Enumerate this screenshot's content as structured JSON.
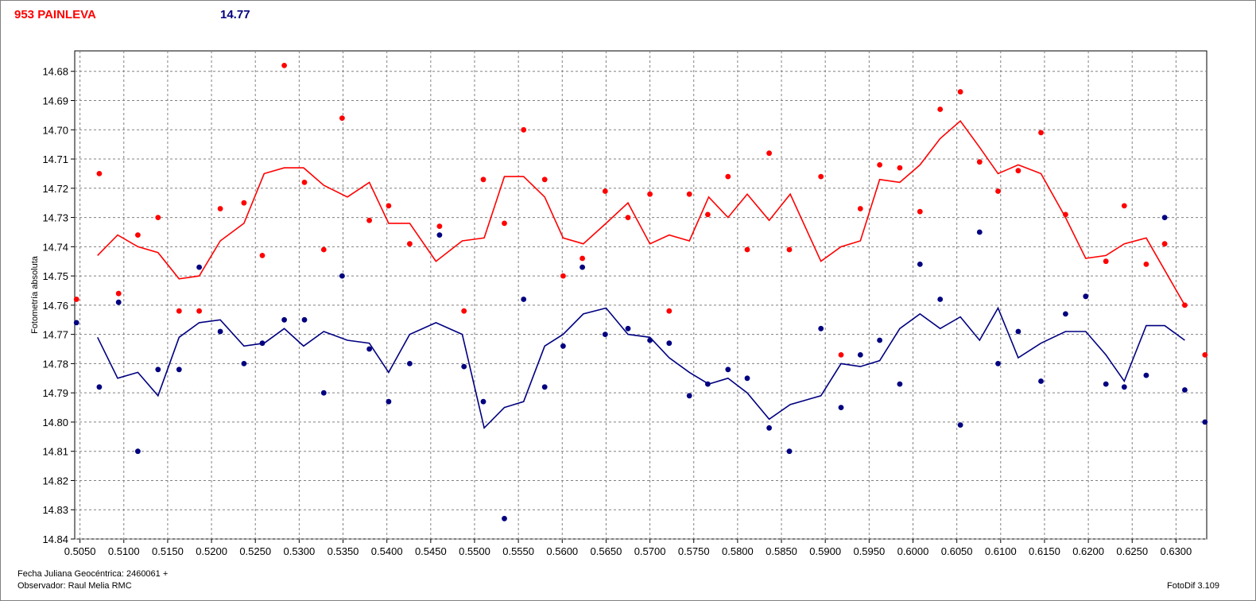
{
  "header": {
    "title": "953 PAINLEVA",
    "magnitude": "14.77"
  },
  "footer": {
    "date_label": "Fecha Juliana Geocéntrica: 2460061 +",
    "observer": "Observador: Raul Melia RMC",
    "software": "FotoDif 3.109"
  },
  "colors": {
    "series_red": "#ff0000",
    "series_blue": "#000080",
    "grid": "#808080"
  },
  "chart_data": {
    "type": "scatter",
    "ylabel": "Fotometría absoluta",
    "xlabel": "",
    "xlim": [
      0.5044,
      0.6335
    ],
    "ylim": [
      14.84,
      14.673
    ],
    "y_inverted": true,
    "grid": true,
    "x_ticks": [
      "0.5050",
      "0.5100",
      "0.5150",
      "0.5200",
      "0.5250",
      "0.5300",
      "0.5350",
      "0.5400",
      "0.5450",
      "0.5500",
      "0.5550",
      "0.5600",
      "0.5650",
      "0.5700",
      "0.5750",
      "0.5800",
      "0.5850",
      "0.5900",
      "0.5950",
      "0.6000",
      "0.6050",
      "0.6100",
      "0.6150",
      "0.6200",
      "0.6250",
      "0.6300"
    ],
    "y_ticks": [
      "14.68",
      "14.69",
      "14.70",
      "14.71",
      "14.72",
      "14.73",
      "14.74",
      "14.75",
      "14.76",
      "14.77",
      "14.78",
      "14.79",
      "14.80",
      "14.81",
      "14.82",
      "14.83",
      "14.84"
    ],
    "series": [
      {
        "color": "#ff0000",
        "points": [
          [
            0.5046,
            14.758
          ],
          [
            0.5072,
            14.715
          ],
          [
            0.5094,
            14.756
          ],
          [
            0.5116,
            14.736
          ],
          [
            0.5139,
            14.73
          ],
          [
            0.5163,
            14.762
          ],
          [
            0.5186,
            14.762
          ],
          [
            0.521,
            14.727
          ],
          [
            0.5237,
            14.725
          ],
          [
            0.5258,
            14.743
          ],
          [
            0.5283,
            14.678
          ],
          [
            0.5306,
            14.718
          ],
          [
            0.5328,
            14.741
          ],
          [
            0.5349,
            14.696
          ],
          [
            0.538,
            14.731
          ],
          [
            0.5402,
            14.726
          ],
          [
            0.5426,
            14.739
          ],
          [
            0.546,
            14.733
          ],
          [
            0.5488,
            14.762
          ],
          [
            0.551,
            14.717
          ],
          [
            0.5534,
            14.732
          ],
          [
            0.5556,
            14.7
          ],
          [
            0.558,
            14.717
          ],
          [
            0.5601,
            14.75
          ],
          [
            0.5623,
            14.744
          ],
          [
            0.5649,
            14.721
          ],
          [
            0.5675,
            14.73
          ],
          [
            0.57,
            14.722
          ],
          [
            0.5722,
            14.762
          ],
          [
            0.5745,
            14.722
          ],
          [
            0.5766,
            14.729
          ],
          [
            0.5789,
            14.716
          ],
          [
            0.5811,
            14.741
          ],
          [
            0.5836,
            14.708
          ],
          [
            0.5859,
            14.741
          ],
          [
            0.5895,
            14.716
          ],
          [
            0.5918,
            14.777
          ],
          [
            0.594,
            14.727
          ],
          [
            0.5962,
            14.712
          ],
          [
            0.5985,
            14.713
          ],
          [
            0.6008,
            14.728
          ],
          [
            0.6031,
            14.693
          ],
          [
            0.6054,
            14.687
          ],
          [
            0.6076,
            14.711
          ],
          [
            0.6097,
            14.721
          ],
          [
            0.612,
            14.714
          ],
          [
            0.6146,
            14.701
          ],
          [
            0.6174,
            14.729
          ],
          [
            0.6197,
            14.757
          ],
          [
            0.622,
            14.745
          ],
          [
            0.6241,
            14.726
          ],
          [
            0.6266,
            14.746
          ],
          [
            0.6287,
            14.739
          ],
          [
            0.631,
            14.76
          ],
          [
            0.6333,
            14.777
          ]
        ],
        "line": [
          [
            0.507,
            14.743
          ],
          [
            0.5093,
            14.736
          ],
          [
            0.5116,
            14.74
          ],
          [
            0.5139,
            14.742
          ],
          [
            0.5163,
            14.751
          ],
          [
            0.5186,
            14.75
          ],
          [
            0.521,
            14.738
          ],
          [
            0.5237,
            14.732
          ],
          [
            0.526,
            14.715
          ],
          [
            0.5283,
            14.713
          ],
          [
            0.5305,
            14.713
          ],
          [
            0.5328,
            14.719
          ],
          [
            0.5355,
            14.723
          ],
          [
            0.538,
            14.718
          ],
          [
            0.5402,
            14.732
          ],
          [
            0.5426,
            14.732
          ],
          [
            0.5456,
            14.745
          ],
          [
            0.5486,
            14.738
          ],
          [
            0.5511,
            14.737
          ],
          [
            0.5534,
            14.716
          ],
          [
            0.5556,
            14.716
          ],
          [
            0.558,
            14.723
          ],
          [
            0.5601,
            14.737
          ],
          [
            0.5624,
            14.739
          ],
          [
            0.565,
            14.732
          ],
          [
            0.5675,
            14.725
          ],
          [
            0.57,
            14.739
          ],
          [
            0.5722,
            14.736
          ],
          [
            0.5745,
            14.738
          ],
          [
            0.5767,
            14.723
          ],
          [
            0.5789,
            14.73
          ],
          [
            0.5811,
            14.722
          ],
          [
            0.5836,
            14.731
          ],
          [
            0.586,
            14.722
          ],
          [
            0.5895,
            14.745
          ],
          [
            0.5918,
            14.74
          ],
          [
            0.594,
            14.738
          ],
          [
            0.5962,
            14.717
          ],
          [
            0.5985,
            14.718
          ],
          [
            0.6008,
            14.712
          ],
          [
            0.6031,
            14.703
          ],
          [
            0.6054,
            14.697
          ],
          [
            0.6076,
            14.706
          ],
          [
            0.6097,
            14.715
          ],
          [
            0.612,
            14.712
          ],
          [
            0.6146,
            14.715
          ],
          [
            0.6174,
            14.73
          ],
          [
            0.6197,
            14.744
          ],
          [
            0.622,
            14.743
          ],
          [
            0.6241,
            14.739
          ],
          [
            0.6266,
            14.737
          ],
          [
            0.631,
            14.76
          ]
        ]
      },
      {
        "color": "#000080",
        "points": [
          [
            0.5046,
            14.766
          ],
          [
            0.5072,
            14.788
          ],
          [
            0.5094,
            14.759
          ],
          [
            0.5116,
            14.81
          ],
          [
            0.5139,
            14.782
          ],
          [
            0.5163,
            14.782
          ],
          [
            0.5186,
            14.747
          ],
          [
            0.521,
            14.769
          ],
          [
            0.5237,
            14.78
          ],
          [
            0.5258,
            14.773
          ],
          [
            0.5283,
            14.765
          ],
          [
            0.5306,
            14.765
          ],
          [
            0.5328,
            14.79
          ],
          [
            0.5349,
            14.75
          ],
          [
            0.538,
            14.775
          ],
          [
            0.5402,
            14.793
          ],
          [
            0.5426,
            14.78
          ],
          [
            0.546,
            14.736
          ],
          [
            0.5488,
            14.781
          ],
          [
            0.551,
            14.793
          ],
          [
            0.5534,
            14.833
          ],
          [
            0.5556,
            14.758
          ],
          [
            0.558,
            14.788
          ],
          [
            0.5601,
            14.774
          ],
          [
            0.5623,
            14.747
          ],
          [
            0.5649,
            14.77
          ],
          [
            0.5675,
            14.768
          ],
          [
            0.57,
            14.772
          ],
          [
            0.5722,
            14.773
          ],
          [
            0.5745,
            14.791
          ],
          [
            0.5766,
            14.787
          ],
          [
            0.5789,
            14.782
          ],
          [
            0.5811,
            14.785
          ],
          [
            0.5836,
            14.802
          ],
          [
            0.5859,
            14.81
          ],
          [
            0.5895,
            14.768
          ],
          [
            0.5918,
            14.795
          ],
          [
            0.594,
            14.777
          ],
          [
            0.5962,
            14.772
          ],
          [
            0.5985,
            14.787
          ],
          [
            0.6008,
            14.746
          ],
          [
            0.6031,
            14.758
          ],
          [
            0.6054,
            14.801
          ],
          [
            0.6076,
            14.735
          ],
          [
            0.6097,
            14.78
          ],
          [
            0.612,
            14.769
          ],
          [
            0.6146,
            14.786
          ],
          [
            0.6174,
            14.763
          ],
          [
            0.6197,
            14.757
          ],
          [
            0.622,
            14.787
          ],
          [
            0.6241,
            14.788
          ],
          [
            0.6266,
            14.784
          ],
          [
            0.6287,
            14.73
          ],
          [
            0.631,
            14.789
          ],
          [
            0.6333,
            14.8
          ]
        ],
        "line": [
          [
            0.507,
            14.771
          ],
          [
            0.5093,
            14.785
          ],
          [
            0.5116,
            14.783
          ],
          [
            0.5139,
            14.791
          ],
          [
            0.5163,
            14.771
          ],
          [
            0.5186,
            14.766
          ],
          [
            0.521,
            14.765
          ],
          [
            0.5237,
            14.774
          ],
          [
            0.526,
            14.773
          ],
          [
            0.5283,
            14.768
          ],
          [
            0.5305,
            14.774
          ],
          [
            0.5328,
            14.769
          ],
          [
            0.5355,
            14.772
          ],
          [
            0.538,
            14.773
          ],
          [
            0.5402,
            14.783
          ],
          [
            0.5426,
            14.77
          ],
          [
            0.5456,
            14.766
          ],
          [
            0.5486,
            14.77
          ],
          [
            0.5511,
            14.802
          ],
          [
            0.5534,
            14.795
          ],
          [
            0.5556,
            14.793
          ],
          [
            0.558,
            14.774
          ],
          [
            0.5601,
            14.77
          ],
          [
            0.5624,
            14.763
          ],
          [
            0.565,
            14.761
          ],
          [
            0.5675,
            14.77
          ],
          [
            0.57,
            14.771
          ],
          [
            0.5722,
            14.778
          ],
          [
            0.5745,
            14.783
          ],
          [
            0.5767,
            14.787
          ],
          [
            0.5789,
            14.785
          ],
          [
            0.5811,
            14.79
          ],
          [
            0.5836,
            14.799
          ],
          [
            0.586,
            14.794
          ],
          [
            0.5895,
            14.791
          ],
          [
            0.5918,
            14.78
          ],
          [
            0.594,
            14.781
          ],
          [
            0.5962,
            14.779
          ],
          [
            0.5985,
            14.768
          ],
          [
            0.6008,
            14.763
          ],
          [
            0.6031,
            14.768
          ],
          [
            0.6054,
            14.764
          ],
          [
            0.6076,
            14.772
          ],
          [
            0.6097,
            14.761
          ],
          [
            0.612,
            14.778
          ],
          [
            0.6146,
            14.773
          ],
          [
            0.6174,
            14.769
          ],
          [
            0.6197,
            14.769
          ],
          [
            0.622,
            14.777
          ],
          [
            0.6241,
            14.786
          ],
          [
            0.6266,
            14.767
          ],
          [
            0.6287,
            14.767
          ],
          [
            0.631,
            14.772
          ]
        ]
      }
    ]
  }
}
